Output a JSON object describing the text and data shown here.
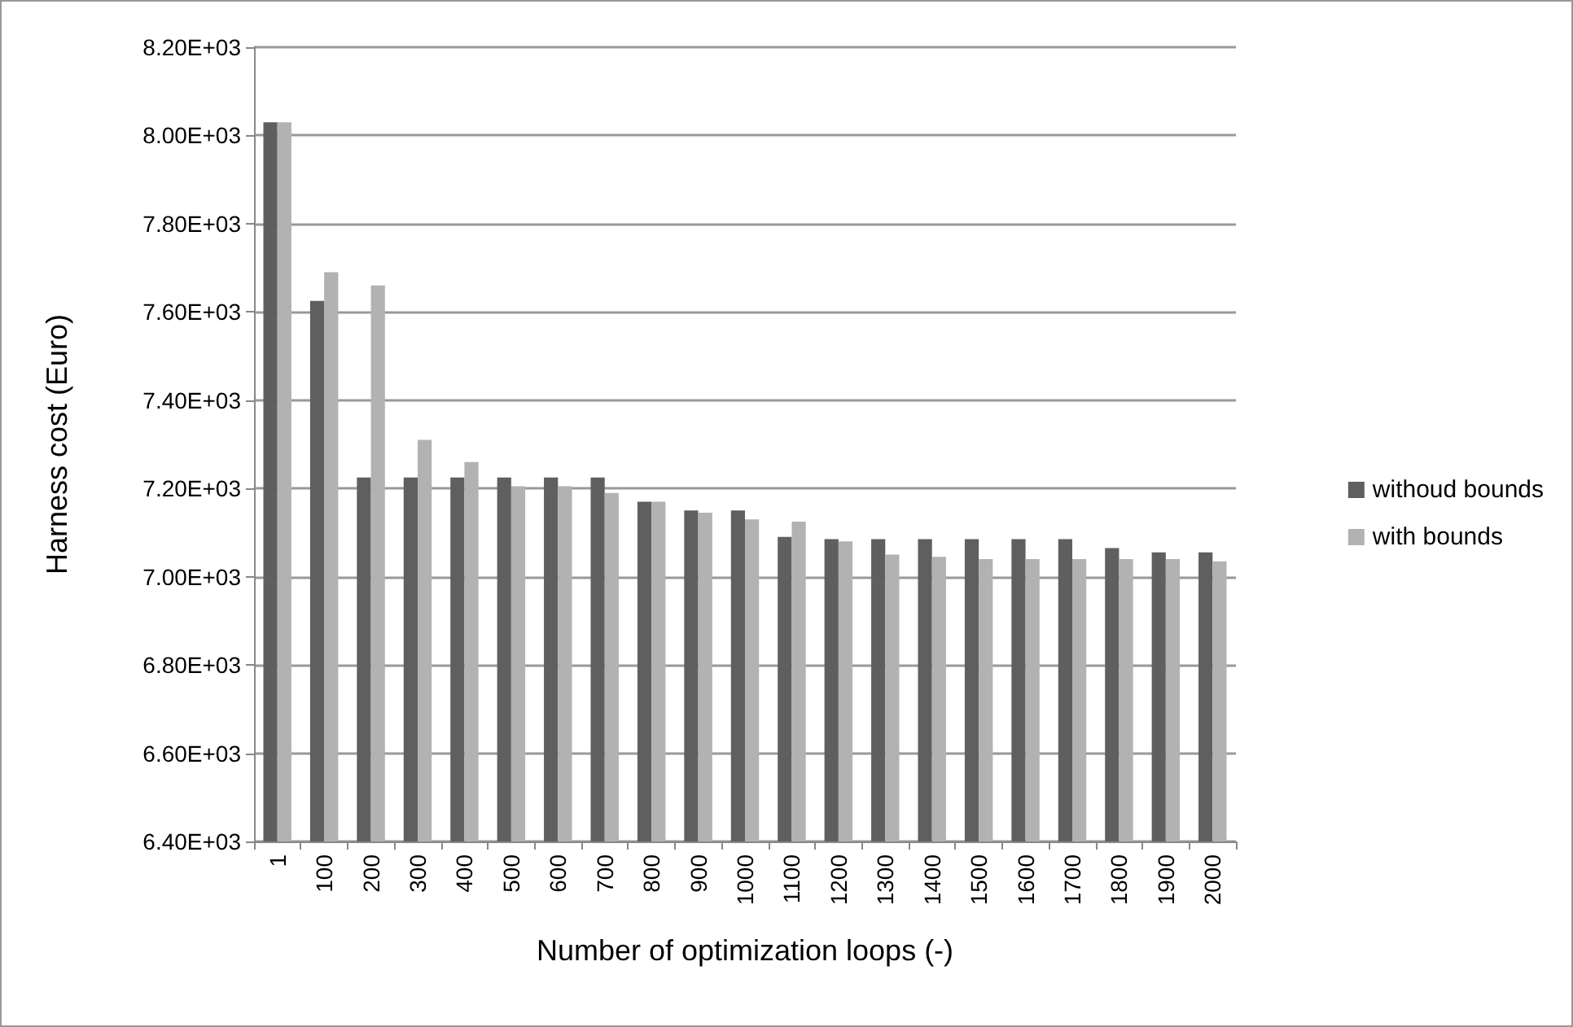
{
  "chart_data": {
    "type": "bar",
    "xlabel": "Number of optimization loops (-)",
    "ylabel": "Harness cost (Euro)",
    "categories": [
      "1",
      "100",
      "200",
      "300",
      "400",
      "500",
      "600",
      "700",
      "800",
      "900",
      "1000",
      "1100",
      "1200",
      "1300",
      "1400",
      "1500",
      "1600",
      "1700",
      "1800",
      "1900",
      "2000"
    ],
    "series": [
      {
        "name": "withoud bounds",
        "color": "#5f5f5f",
        "values": [
          8030,
          7625,
          7225,
          7225,
          7225,
          7225,
          7225,
          7225,
          7170,
          7150,
          7150,
          7090,
          7085,
          7085,
          7085,
          7085,
          7085,
          7085,
          7065,
          7055,
          7055
        ]
      },
      {
        "name": "with bounds",
        "color": "#b2b2b2",
        "values": [
          8030,
          7690,
          7660,
          7310,
          7260,
          7205,
          7205,
          7190,
          7170,
          7145,
          7130,
          7125,
          7080,
          7050,
          7045,
          7040,
          7040,
          7040,
          7040,
          7040,
          7035
        ]
      }
    ],
    "ylim": [
      6400,
      8200
    ],
    "yticks": [
      {
        "value": 6400,
        "label": "6.40E+03"
      },
      {
        "value": 6600,
        "label": "6.60E+03"
      },
      {
        "value": 6800,
        "label": "6.80E+03"
      },
      {
        "value": 7000,
        "label": "7.00E+03"
      },
      {
        "value": 7200,
        "label": "7.20E+03"
      },
      {
        "value": 7400,
        "label": "7.40E+03"
      },
      {
        "value": 7600,
        "label": "7.60E+03"
      },
      {
        "value": 7800,
        "label": "7.80E+03"
      },
      {
        "value": 8000,
        "label": "8.00E+03"
      },
      {
        "value": 8200,
        "label": "8.20E+03"
      }
    ],
    "grid": "y",
    "legend": "right"
  }
}
